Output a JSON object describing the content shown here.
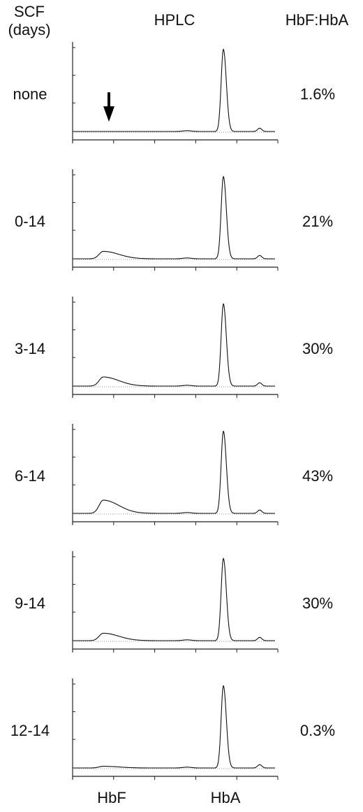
{
  "header": {
    "scf_title": "SCF",
    "scf_subtitle": "(days)",
    "hplc_title": "HPLC",
    "ratio_title": "HbF:HbA"
  },
  "x_labels": {
    "hbf": "HbF",
    "hba": "HbA"
  },
  "chart_data": [
    {
      "type": "line",
      "panel_label": "none",
      "ratio_label": "1.6%",
      "hbf_peak": 0.0,
      "hba_peak": 1.0,
      "hbf_fraction": 0.016,
      "arrow": true
    },
    {
      "type": "line",
      "panel_label": "0-14",
      "ratio_label": "21%",
      "hbf_peak": 0.09,
      "hba_peak": 1.0,
      "hbf_fraction": 0.21,
      "arrow": false
    },
    {
      "type": "line",
      "panel_label": "3-14",
      "ratio_label": "30%",
      "hbf_peak": 0.11,
      "hba_peak": 1.0,
      "hbf_fraction": 0.3,
      "arrow": false
    },
    {
      "type": "line",
      "panel_label": "6-14",
      "ratio_label": "43%",
      "hbf_peak": 0.16,
      "hba_peak": 1.0,
      "hbf_fraction": 0.43,
      "arrow": false
    },
    {
      "type": "line",
      "panel_label": "9-14",
      "ratio_label": "30%",
      "hbf_peak": 0.09,
      "hba_peak": 1.0,
      "hbf_fraction": 0.3,
      "arrow": false
    },
    {
      "type": "line",
      "panel_label": "12-14",
      "ratio_label": "0.3%",
      "hbf_peak": 0.02,
      "hba_peak": 1.0,
      "hbf_fraction": 0.003,
      "arrow": false
    }
  ]
}
